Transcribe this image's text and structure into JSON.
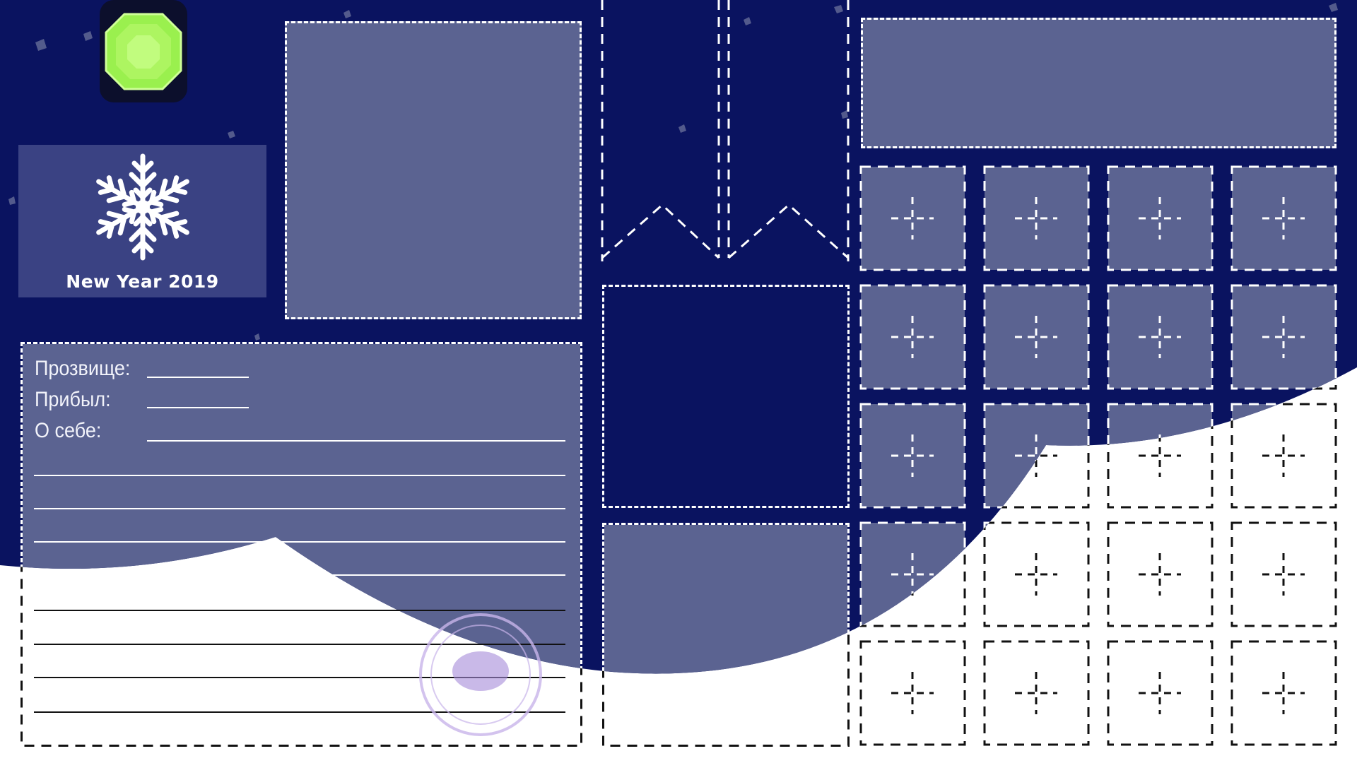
{
  "badge": {
    "title": "New Year 2019",
    "icon": "snowflake-icon"
  },
  "gem": {
    "icon": "gem-icon",
    "color": "#9af04e"
  },
  "profile": {
    "nickname_label": "Прозвище:",
    "arrived_label": "Прибыл:",
    "about_label": "О себе:"
  },
  "colors": {
    "background": "#0a1360",
    "panel": "#5b6391",
    "badge": "#3a4283",
    "snow": "#ffffff",
    "dashes": "#ffffff"
  },
  "watermark": {
    "icon": "watermark-seal"
  }
}
